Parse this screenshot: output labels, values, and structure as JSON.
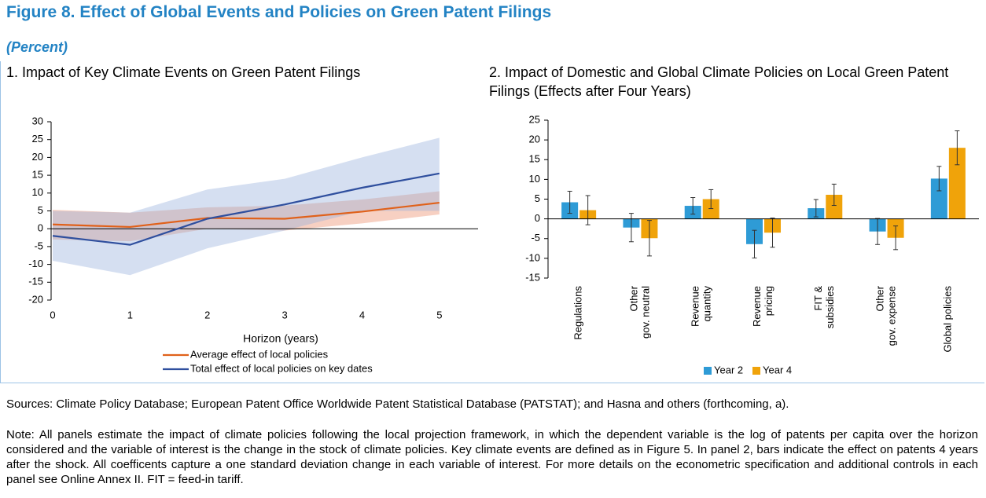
{
  "figure": {
    "title": "Figure 8. Effect of Global Events and Policies on Green Patent Filings",
    "subtitle": "(Percent)"
  },
  "chart_data": [
    {
      "type": "line",
      "title": "1. Impact of Key Climate Events on Green Patent Filings",
      "x_label": "Horizon (years)",
      "x": [
        0,
        1,
        2,
        3,
        4,
        5
      ],
      "xlim": [
        0,
        5.5
      ],
      "xticks": [
        0,
        1,
        2,
        3,
        4,
        5
      ],
      "ylim": [
        -20,
        30
      ],
      "yticks": [
        -20,
        -15,
        -10,
        -5,
        0,
        5,
        10,
        15,
        20,
        25,
        30
      ],
      "series": [
        {
          "name": "Average effect of local policies",
          "color": "#e0611a",
          "band_color": "rgba(238,150,120,0.45)",
          "values": [
            1.2,
            0.5,
            3.0,
            2.8,
            4.8,
            7.3
          ],
          "lower": [
            -3.0,
            -3.5,
            0.0,
            -0.5,
            1.5,
            4.0
          ],
          "upper": [
            5.3,
            4.5,
            6.0,
            6.5,
            8.2,
            10.5
          ]
        },
        {
          "name": "Total effect of local policies on key dates",
          "color": "#2f4f9e",
          "band_color": "rgba(150,175,220,0.4)",
          "values": [
            -2.0,
            -4.5,
            2.8,
            6.8,
            11.5,
            15.5
          ],
          "lower": [
            -9.0,
            -13.0,
            -5.5,
            -0.5,
            5.0,
            5.0
          ],
          "upper": [
            5.0,
            4.5,
            11.0,
            14.0,
            20.0,
            25.5
          ]
        }
      ]
    },
    {
      "type": "bar",
      "title": "2. Impact of Domestic and Global Climate Policies on Local Green Patent Filings (Effects after Four Years)",
      "categories": [
        [
          "Regulations"
        ],
        [
          "Other",
          "gov. neutral"
        ],
        [
          "Revenue",
          "quantity"
        ],
        [
          "Revenue",
          "pricing"
        ],
        [
          "FIT &",
          "subsidies"
        ],
        [
          "Other",
          "gov. expense"
        ],
        [
          "Global policies"
        ]
      ],
      "ylim": [
        -15,
        25
      ],
      "yticks": [
        -15,
        -10,
        -5,
        0,
        5,
        10,
        15,
        20,
        25
      ],
      "series": [
        {
          "name": "Year 2",
          "color": "#2e9bd6",
          "values": [
            4.2,
            -2.2,
            3.3,
            -6.4,
            2.7,
            -3.2,
            10.2
          ],
          "errors": [
            2.8,
            3.6,
            2.1,
            3.5,
            2.2,
            3.3,
            3.1
          ]
        },
        {
          "name": "Year 4",
          "color": "#f0a30a",
          "values": [
            2.2,
            -4.9,
            5.0,
            -3.5,
            6.1,
            -4.8,
            18.0
          ],
          "errors": [
            3.7,
            4.5,
            2.4,
            3.7,
            2.7,
            3.0,
            4.3
          ]
        }
      ]
    }
  ],
  "sources": "Sources: Climate Policy Database; European Patent Office Worldwide Patent Statistical Database (PATSTAT); and Hasna and others (forthcoming, a).",
  "note": "Note: All panels estimate the impact of climate policies following the local projection framework, in which the dependent variable is the log of patents per capita over the horizon considered and the variable of interest is the change in the stock of climate policies. Key climate events are defined as in Figure 5. In panel 2, bars indicate the effect on patents 4 years after the shock. All coefficents capture a one standard deviation change in each variable of interest. For more details on the econometric specification and additional controls in each panel see Online Annex II. FIT = feed-in tariff."
}
